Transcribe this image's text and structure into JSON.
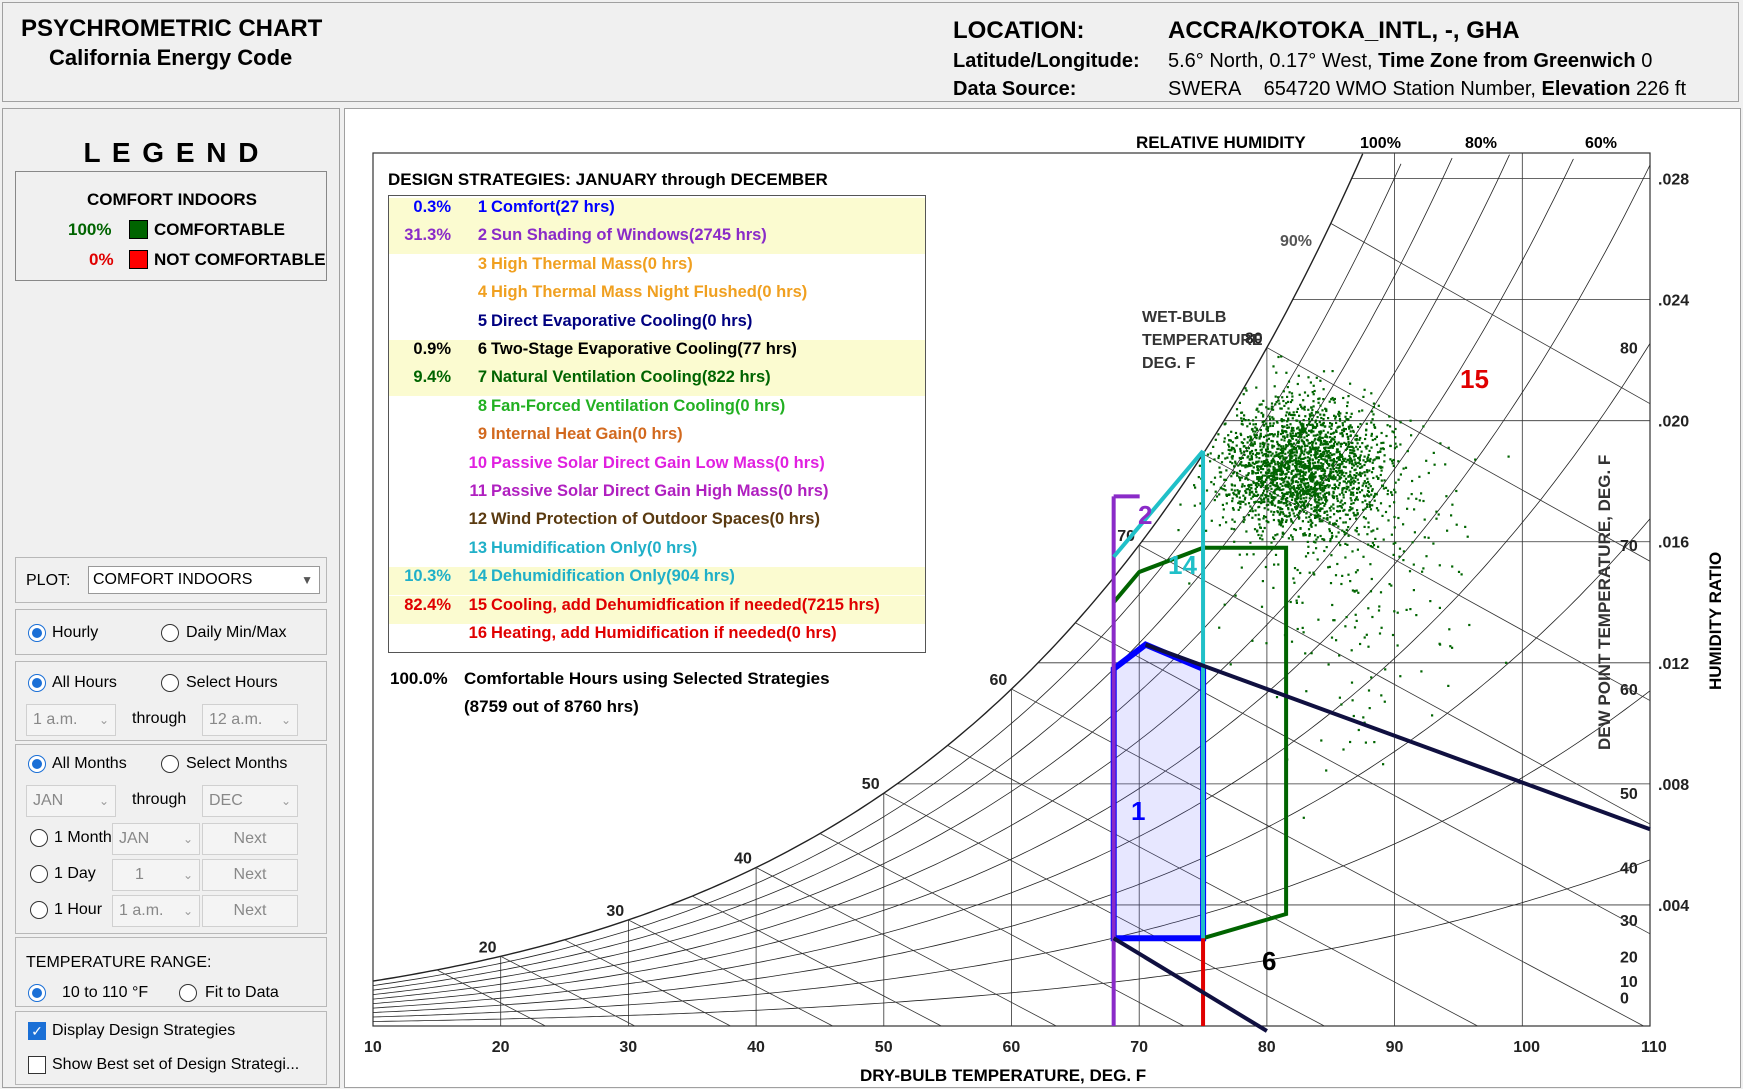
{
  "header": {
    "title": "PSYCHROMETRIC CHART",
    "subtitle": "California Energy Code",
    "location_label": "LOCATION:",
    "location_value": "ACCRA/KOTOKA_INTL, -, GHA",
    "latlon_label": "Latitude/Longitude:",
    "latlon_value": "5.6° North, 0.17° West,",
    "tz_label": "Time Zone from Greenwich",
    "tz_value": "0",
    "source_label": "Data Source:",
    "source_value": "SWERA",
    "wmo_value": "654720 WMO Station Number,",
    "elev_label": "Elevation",
    "elev_value": "226 ft"
  },
  "legend": {
    "title": "L E G E N D",
    "heading": "COMFORT INDOORS",
    "comfortable_pct": "100%",
    "comfortable_label": "COMFORTABLE",
    "comfortable_color": "#006400",
    "not_pct": "0%",
    "not_label": "NOT COMFORTABLE",
    "not_color": "#ff0000"
  },
  "controls": {
    "plot_label": "PLOT:",
    "plot_value": "COMFORT INDOORS",
    "hourly": "Hourly",
    "daily": "Daily Min/Max",
    "all_hours": "All Hours",
    "select_hours": "Select Hours",
    "hour_from": "1 a.m.",
    "through1": "through",
    "hour_to": "12 a.m.",
    "all_months": "All Months",
    "select_months": "Select Months",
    "month_from": "JAN",
    "through2": "through",
    "month_to": "DEC",
    "one_month": "1 Month",
    "one_month_val": "JAN",
    "next1": "Next",
    "one_day": "1 Day",
    "one_day_val": "1",
    "next2": "Next",
    "one_hour": "1 Hour",
    "one_hour_val": "1 a.m.",
    "next3": "Next",
    "temp_range_label": "TEMPERATURE RANGE:",
    "range_fixed": "10 to 110 °F",
    "range_fit": "Fit to Data",
    "display_strategies": "Display Design Strategies",
    "show_best": "Show Best set of Design Strategi..."
  },
  "strategies": {
    "heading": "DESIGN STRATEGIES:  JANUARY through DECEMBER",
    "items": [
      {
        "pct": "0.3%",
        "num": "1",
        "name": "Comfort(27 hrs)",
        "color": "#0000ff",
        "hl": true
      },
      {
        "pct": "31.3%",
        "num": "2",
        "name": "Sun Shading of Windows(2745 hrs)",
        "color": "#8a2bc8",
        "hl": true
      },
      {
        "pct": "",
        "num": "3",
        "name": "High Thermal Mass(0 hrs)",
        "color": "#f0a020",
        "hl": false
      },
      {
        "pct": "",
        "num": "4",
        "name": "High Thermal Mass Night Flushed(0 hrs)",
        "color": "#f0a020",
        "hl": false
      },
      {
        "pct": "",
        "num": "5",
        "name": "Direct Evaporative Cooling(0 hrs)",
        "color": "#000080",
        "hl": false
      },
      {
        "pct": "0.9%",
        "num": "6",
        "name": "Two-Stage Evaporative Cooling(77 hrs)",
        "color": "#000000",
        "hl": true
      },
      {
        "pct": "9.4%",
        "num": "7",
        "name": "Natural Ventilation Cooling(822 hrs)",
        "color": "#006400",
        "hl": true
      },
      {
        "pct": "",
        "num": "8",
        "name": "Fan-Forced Ventilation Cooling(0 hrs)",
        "color": "#22b022",
        "hl": false
      },
      {
        "pct": "",
        "num": "9",
        "name": "Internal Heat Gain(0 hrs)",
        "color": "#d2691e",
        "hl": false
      },
      {
        "pct": "",
        "num": "10",
        "name": "Passive Solar Direct Gain Low Mass(0 hrs)",
        "color": "#e020e0",
        "hl": false
      },
      {
        "pct": "",
        "num": "11",
        "name": "Passive Solar Direct Gain High Mass(0 hrs)",
        "color": "#b020c0",
        "hl": false
      },
      {
        "pct": "",
        "num": "12",
        "name": "Wind Protection of Outdoor Spaces(0 hrs)",
        "color": "#5a3a10",
        "hl": false
      },
      {
        "pct": "",
        "num": "13",
        "name": "Humidification Only(0 hrs)",
        "color": "#20b0c8",
        "hl": false
      },
      {
        "pct": "10.3%",
        "num": "14",
        "name": "Dehumidification Only(904 hrs)",
        "color": "#20b0c8",
        "hl": true
      },
      {
        "pct": "82.4%",
        "num": "15",
        "name": "Cooling, add Dehumidfication if needed(7215 hrs)",
        "color": "#e00000",
        "hl": true
      },
      {
        "pct": "",
        "num": "16",
        "name": "Heating, add Humidification if needed(0 hrs)",
        "color": "#e00000",
        "hl": false
      }
    ],
    "summary_pct": "100.0%",
    "summary_text": "Comfortable Hours using Selected Strategies",
    "summary_sub": "(8759 out of 8760 hrs)"
  },
  "chart_data": {
    "type": "scatter",
    "xlabel": "DRY-BULB TEMPERATURE, DEG. F",
    "ylabel": "HUMIDITY RATIO",
    "y2label": "DEW POINT TEMPERATURE, DEG. F",
    "rh_label": "RELATIVE HUMIDITY",
    "wb_label": [
      "WET-BULB",
      "TEMPERATURE",
      "DEG. F"
    ],
    "xlim": [
      10,
      110
    ],
    "ylim": [
      0,
      0.03
    ],
    "x_ticks": [
      "10",
      "20",
      "30",
      "40",
      "50",
      "60",
      "70",
      "80",
      "90",
      "100",
      "110"
    ],
    "y_ticks": [
      ".004",
      ".008",
      ".012",
      ".016",
      ".020",
      ".024",
      ".028"
    ],
    "dewpoint_ticks": [
      "0",
      "10",
      "20",
      "30",
      "40",
      "50",
      "60",
      "70",
      "80"
    ],
    "rh_ticks": [
      "100%",
      "80%",
      "60%",
      "90%"
    ],
    "wetbulb_ticks": [
      "20",
      "30",
      "40",
      "50",
      "60",
      "70",
      "80"
    ],
    "zone_labels": [
      "1",
      "2",
      "6",
      "14",
      "15"
    ],
    "cluster": {
      "center_db": 82.5,
      "center_w": 0.0185,
      "color": "#006400",
      "points": 8760
    },
    "zones": {
      "comfort_polygon": [
        [
          68,
          0.0029
        ],
        [
          68,
          0.0118
        ],
        [
          70.5,
          0.0126
        ],
        [
          75,
          0.0118
        ],
        [
          75,
          0.0029
        ]
      ],
      "ventilation_polygon": [
        [
          75,
          0.0029
        ],
        [
          81.5,
          0.0037
        ],
        [
          81.5,
          0.0158
        ],
        [
          75,
          0.0158
        ],
        [
          70,
          0.015
        ],
        [
          68,
          0.014
        ]
      ],
      "shading_x": 68,
      "cooling_x": 75
    }
  }
}
